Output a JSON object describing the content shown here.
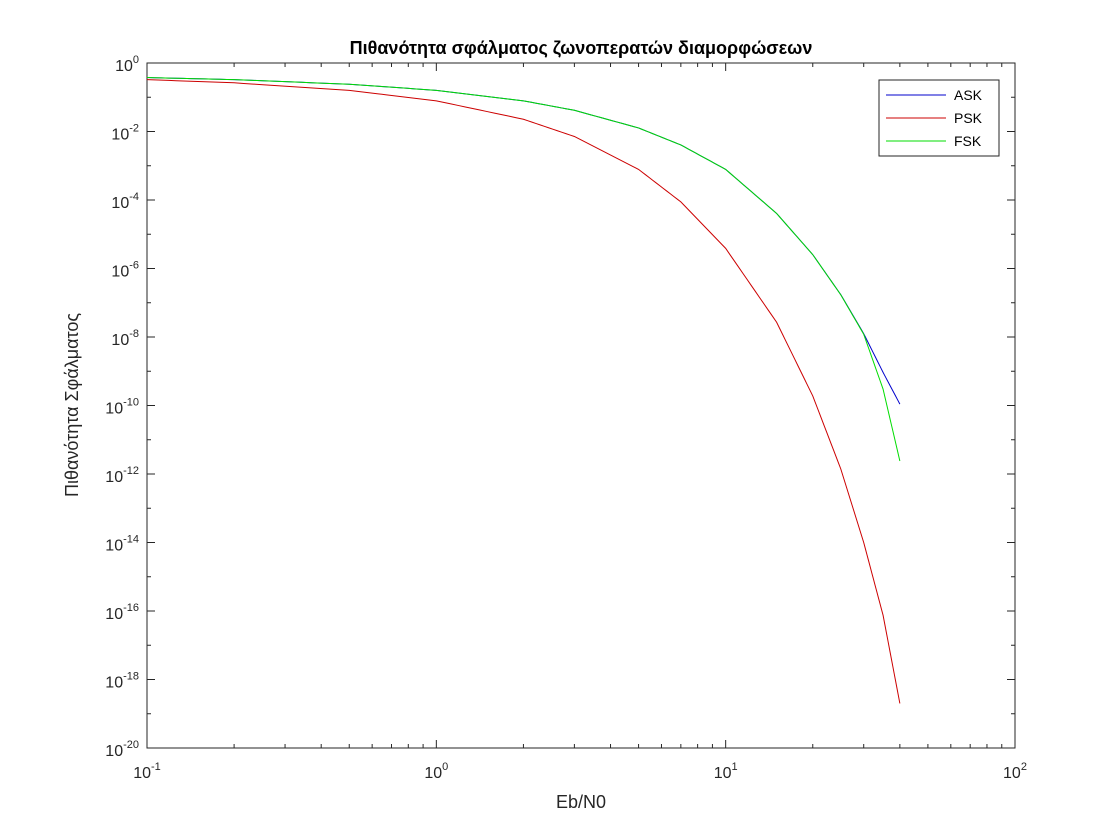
{
  "chart_data": {
    "type": "line",
    "title": "Πιθανότητα σφάλματος ζωνοπερατών διαμορφώσεων",
    "xlabel": "Eb/N0",
    "ylabel": "Πιθανότητα Σφάλματος",
    "xscale": "log",
    "yscale": "log",
    "xlim": [
      0.1,
      100
    ],
    "ylim": [
      1e-20,
      1
    ],
    "x_ticks": [
      {
        "base": "10",
        "exp": "-1",
        "value": 0.1
      },
      {
        "base": "10",
        "exp": "0",
        "value": 1
      },
      {
        "base": "10",
        "exp": "1",
        "value": 10
      },
      {
        "base": "10",
        "exp": "2",
        "value": 100
      }
    ],
    "y_ticks": [
      {
        "base": "10",
        "exp": "0",
        "value": 1
      },
      {
        "base": "10",
        "exp": "-2",
        "value": 0.01
      },
      {
        "base": "10",
        "exp": "-4",
        "value": 0.0001
      },
      {
        "base": "10",
        "exp": "-6",
        "value": 1e-06
      },
      {
        "base": "10",
        "exp": "-8",
        "value": 1e-08
      },
      {
        "base": "10",
        "exp": "-10",
        "value": 1e-10
      },
      {
        "base": "10",
        "exp": "-12",
        "value": 1e-12
      },
      {
        "base": "10",
        "exp": "-14",
        "value": 1e-14
      },
      {
        "base": "10",
        "exp": "-16",
        "value": 1e-16
      },
      {
        "base": "10",
        "exp": "-18",
        "value": 1e-18
      },
      {
        "base": "10",
        "exp": "-20",
        "value": 1e-20
      }
    ],
    "grid": false,
    "legend_position": "top-right",
    "series": [
      {
        "name": "ASK",
        "color": "#0000cc",
        "x": [
          0.1,
          0.2,
          0.5,
          1,
          2,
          3,
          5,
          7,
          10,
          15,
          20,
          25,
          30,
          35,
          40
        ],
        "y": [
          0.376,
          0.327,
          0.24,
          0.159,
          0.0786,
          0.0416,
          0.0127,
          0.00405,
          0.000783,
          4.05e-05,
          2.54e-06,
          1.72e-07,
          1.25e-08,
          9.25e-10,
          1.1e-10
        ]
      },
      {
        "name": "PSK",
        "color": "#cc0000",
        "x": [
          0.1,
          0.2,
          0.5,
          1,
          2,
          3,
          5,
          7,
          10,
          15,
          20,
          25,
          30,
          35,
          40
        ],
        "y": [
          0.327,
          0.264,
          0.159,
          0.0786,
          0.0228,
          0.00715,
          0.000783,
          8.8e-05,
          3.87e-06,
          2.7e-08,
          1.9e-10,
          1.4e-12,
          1e-14,
          7.5e-17,
          2e-19
        ]
      },
      {
        "name": "FSK",
        "color": "#00dd00",
        "x": [
          0.1,
          0.2,
          0.5,
          1,
          2,
          3,
          5,
          7,
          10,
          15,
          20,
          25,
          30,
          35,
          40
        ],
        "y": [
          0.376,
          0.327,
          0.24,
          0.159,
          0.0786,
          0.0416,
          0.0127,
          0.00405,
          0.000783,
          4.05e-05,
          2.54e-06,
          1.7e-07,
          1.2e-08,
          3e-10,
          2.4e-12
        ]
      }
    ]
  }
}
